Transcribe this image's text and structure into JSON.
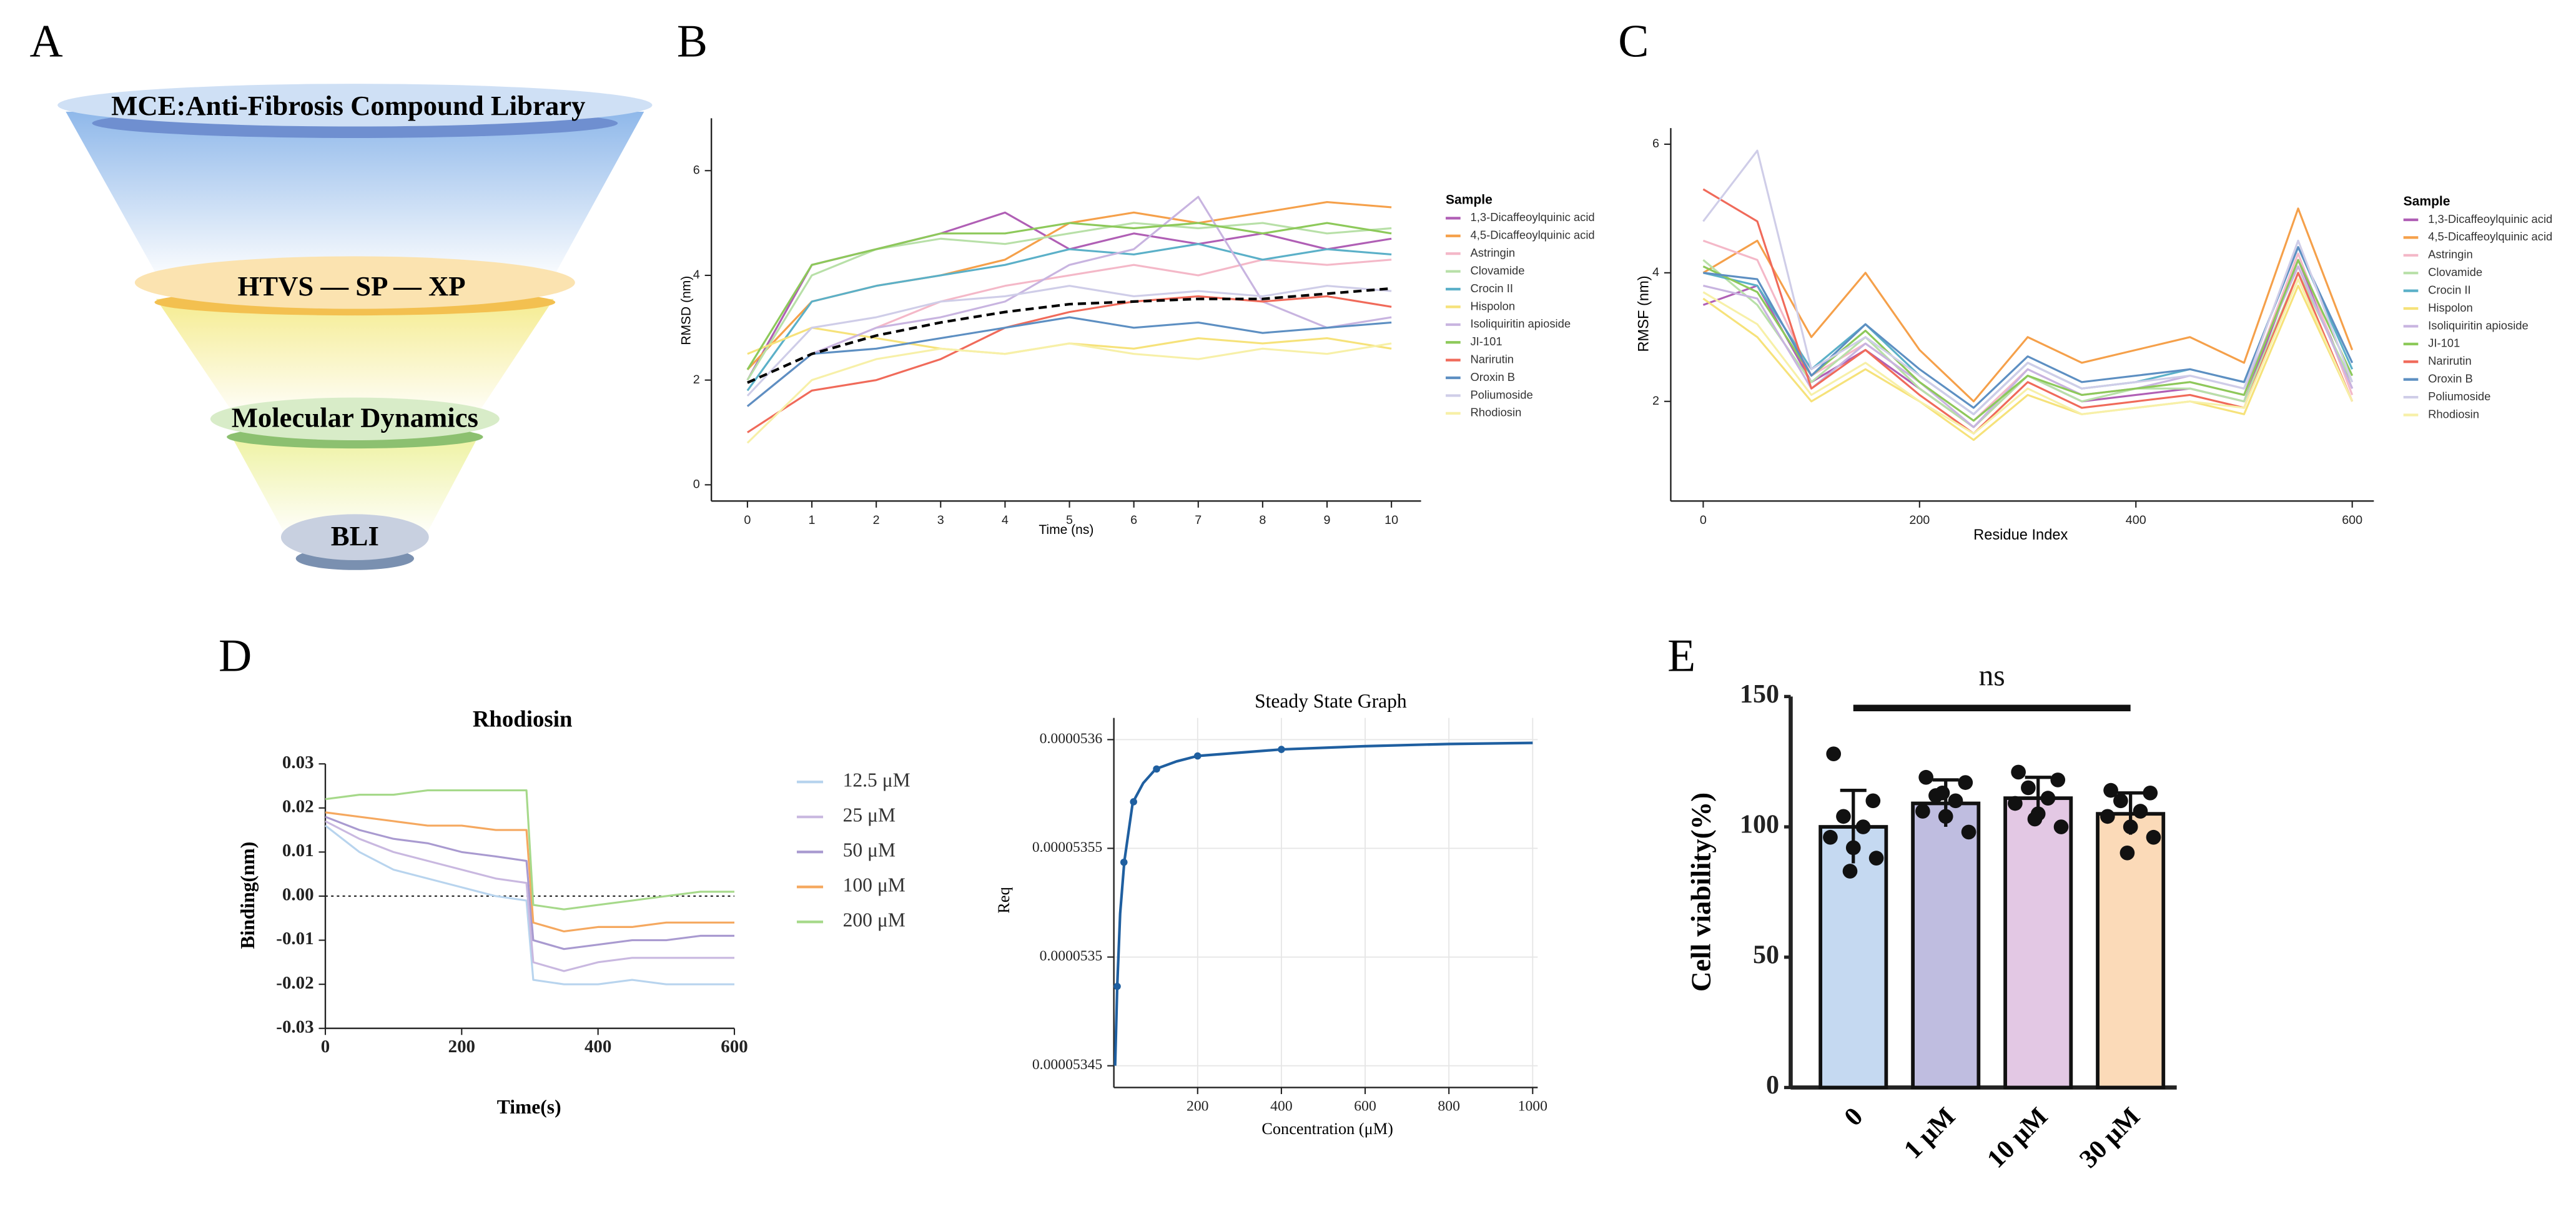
{
  "panel_labels": [
    "A",
    "B",
    "C",
    "D",
    "E"
  ],
  "funnel": {
    "levels": [
      "MCE:Anti-Fibrosis Compound Library",
      "HTVS — SP — XP",
      "Molecular Dynamics",
      "BLI"
    ]
  },
  "chart_data": [
    {
      "type": "line",
      "x_label": "Time (ns)",
      "y_label": "RMSD (nm)",
      "legend_title": "Sample",
      "x": [
        0,
        1,
        2,
        3,
        4,
        5,
        6,
        7,
        8,
        9,
        10
      ],
      "xlim": [
        -0.56,
        10.46
      ],
      "ylim": [
        -0.31,
        7.0
      ],
      "xticks": [
        0,
        1,
        2,
        3,
        4,
        5,
        6,
        7,
        8,
        9,
        10
      ],
      "yticks": [
        0,
        2,
        4,
        6
      ],
      "grid": false,
      "series": [
        {
          "name": "1,3-Dicaffeoylquinic acid",
          "color": "#b05fb5",
          "values": [
            2.0,
            4.2,
            4.5,
            4.8,
            5.2,
            4.5,
            4.8,
            4.6,
            4.8,
            4.5,
            4.7
          ]
        },
        {
          "name": "4,5-Dicaffeoylquinic acid",
          "color": "#f5a04a",
          "values": [
            2.2,
            3.5,
            3.8,
            4.0,
            4.3,
            5.0,
            5.2,
            5.0,
            5.2,
            5.4,
            5.3
          ]
        },
        {
          "name": "Astringin",
          "color": "#f4b8c8",
          "values": [
            1.5,
            2.5,
            3.0,
            3.5,
            3.8,
            4.0,
            4.2,
            4.0,
            4.3,
            4.2,
            4.3
          ]
        },
        {
          "name": "Clovamide",
          "color": "#b8e0a8",
          "values": [
            2.0,
            4.0,
            4.5,
            4.7,
            4.6,
            4.8,
            5.0,
            4.9,
            5.0,
            4.8,
            4.9
          ]
        },
        {
          "name": "Crocin II",
          "color": "#5bb0c8",
          "values": [
            1.8,
            3.5,
            3.8,
            4.0,
            4.2,
            4.5,
            4.4,
            4.6,
            4.3,
            4.5,
            4.4
          ]
        },
        {
          "name": "Hispolon",
          "color": "#f6e27a",
          "values": [
            2.5,
            3.0,
            2.8,
            2.6,
            2.5,
            2.7,
            2.6,
            2.8,
            2.7,
            2.8,
            2.6
          ]
        },
        {
          "name": "Isoliquiritin apioside",
          "color": "#c8b4e0",
          "values": [
            1.5,
            2.5,
            3.0,
            3.2,
            3.5,
            4.2,
            4.5,
            5.5,
            3.5,
            3.0,
            3.2
          ]
        },
        {
          "name": "JI-101",
          "color": "#8dc95a",
          "values": [
            2.2,
            4.2,
            4.5,
            4.8,
            4.8,
            5.0,
            4.9,
            5.0,
            4.8,
            5.0,
            4.8
          ]
        },
        {
          "name": "Narirutin",
          "color": "#f06a5a",
          "values": [
            1.0,
            1.8,
            2.0,
            2.4,
            3.0,
            3.3,
            3.5,
            3.6,
            3.5,
            3.6,
            3.4
          ]
        },
        {
          "name": "Oroxin B",
          "color": "#5d8fc2",
          "values": [
            1.5,
            2.5,
            2.6,
            2.8,
            3.0,
            3.2,
            3.0,
            3.1,
            2.9,
            3.0,
            3.1
          ]
        },
        {
          "name": "Poliumoside",
          "color": "#cfcde8",
          "values": [
            1.7,
            3.0,
            3.2,
            3.5,
            3.6,
            3.8,
            3.6,
            3.7,
            3.6,
            3.8,
            3.7
          ]
        },
        {
          "name": "Rhodiosin",
          "color": "#f7f0a8",
          "values": [
            0.8,
            2.0,
            2.4,
            2.6,
            2.5,
            2.7,
            2.5,
            2.4,
            2.6,
            2.5,
            2.7
          ]
        }
      ],
      "trend": {
        "color": "#000000",
        "values": [
          1.95,
          2.5,
          2.85,
          3.1,
          3.3,
          3.45,
          3.5,
          3.55,
          3.55,
          3.65,
          3.75
        ]
      }
    },
    {
      "type": "line",
      "x_label": "Residue Index",
      "y_label": "RMSF (nm)",
      "legend_title": "Sample",
      "x": [
        0,
        50,
        100,
        150,
        200,
        250,
        300,
        350,
        400,
        450,
        500,
        550,
        600
      ],
      "xlim": [
        -30,
        620
      ],
      "ylim": [
        0.45,
        6.25
      ],
      "xticks": [
        0,
        200,
        400,
        600
      ],
      "yticks": [
        2,
        4,
        6
      ],
      "grid": false,
      "series": [
        {
          "name": "1,3-Dicaffeoylquinic acid",
          "color": "#b05fb5",
          "values": [
            3.5,
            3.8,
            2.3,
            2.8,
            2.2,
            1.6,
            2.4,
            2.0,
            2.1,
            2.2,
            2.0,
            4.2,
            2.2
          ]
        },
        {
          "name": "4,5-Dicaffeoylquinic acid",
          "color": "#f5a04a",
          "values": [
            4.0,
            4.5,
            3.0,
            4.0,
            2.8,
            2.0,
            3.0,
            2.6,
            2.8,
            3.0,
            2.6,
            5.0,
            2.8
          ]
        },
        {
          "name": "Astringin",
          "color": "#f4b8c8",
          "values": [
            4.5,
            4.2,
            2.4,
            2.9,
            2.3,
            1.7,
            2.5,
            2.1,
            2.2,
            2.3,
            2.1,
            4.3,
            2.1
          ]
        },
        {
          "name": "Clovamide",
          "color": "#b8e0a8",
          "values": [
            4.2,
            3.5,
            2.3,
            3.0,
            2.2,
            1.6,
            2.4,
            2.0,
            2.2,
            2.2,
            2.0,
            4.0,
            2.3
          ]
        },
        {
          "name": "Crocin II",
          "color": "#5bb0c8",
          "values": [
            4.0,
            3.8,
            2.5,
            3.2,
            2.4,
            1.8,
            2.6,
            2.2,
            2.3,
            2.5,
            2.3,
            4.4,
            2.5
          ]
        },
        {
          "name": "Hispolon",
          "color": "#f6e27a",
          "values": [
            3.6,
            3.0,
            2.0,
            2.5,
            2.0,
            1.4,
            2.1,
            1.8,
            1.9,
            2.0,
            1.8,
            3.8,
            2.0
          ]
        },
        {
          "name": "Isoliquiritin apioside",
          "color": "#c8b4e0",
          "values": [
            3.8,
            3.6,
            2.2,
            2.9,
            2.3,
            1.6,
            2.5,
            2.1,
            2.2,
            2.4,
            2.2,
            4.1,
            2.2
          ]
        },
        {
          "name": "JI-101",
          "color": "#8dc95a",
          "values": [
            4.1,
            3.7,
            2.4,
            3.1,
            2.3,
            1.7,
            2.4,
            2.1,
            2.2,
            2.3,
            2.1,
            4.2,
            2.4
          ]
        },
        {
          "name": "Narirutin",
          "color": "#f06a5a",
          "values": [
            5.3,
            4.8,
            2.2,
            2.8,
            2.1,
            1.5,
            2.3,
            1.9,
            2.0,
            2.1,
            1.9,
            4.0,
            2.0
          ]
        },
        {
          "name": "Oroxin B",
          "color": "#5d8fc2",
          "values": [
            4.0,
            3.9,
            2.4,
            3.2,
            2.5,
            1.9,
            2.7,
            2.3,
            2.4,
            2.5,
            2.3,
            4.4,
            2.6
          ]
        },
        {
          "name": "Poliumoside",
          "color": "#cfcde8",
          "values": [
            4.8,
            5.9,
            2.5,
            3.0,
            2.4,
            1.8,
            2.6,
            2.2,
            2.3,
            2.4,
            2.2,
            4.5,
            2.3
          ]
        },
        {
          "name": "Rhodiosin",
          "color": "#f7f0a8",
          "values": [
            3.7,
            3.2,
            2.1,
            2.6,
            2.0,
            1.5,
            2.2,
            1.8,
            1.9,
            2.0,
            1.9,
            3.9,
            2.0
          ]
        }
      ]
    },
    {
      "type": "line",
      "title": "Rhodiosin",
      "x_label": "Time(s)",
      "y_label": "Binding(nm)",
      "x": [
        0,
        50,
        100,
        150,
        200,
        250,
        295,
        305,
        350,
        400,
        450,
        500,
        550,
        600
      ],
      "xlim": [
        0,
        600
      ],
      "ylim": [
        -0.03,
        0.03
      ],
      "xticks": [
        0,
        200,
        400,
        600
      ],
      "yticks": [
        0.03,
        0.02,
        0.01,
        {
          "value": 0,
          "label": "0.00"
        },
        -0.01,
        -0.02,
        -0.03
      ],
      "grid": false,
      "zero_line": true,
      "series": [
        {
          "name": "12.5 μM",
          "color": "#b8d4ee",
          "values": [
            0.016,
            0.01,
            0.006,
            0.004,
            0.002,
            0.0,
            -0.001,
            -0.019,
            -0.02,
            -0.02,
            -0.019,
            -0.02,
            -0.02,
            -0.02
          ]
        },
        {
          "name": "25 μM",
          "color": "#c9b8e0",
          "values": [
            0.017,
            0.013,
            0.01,
            0.008,
            0.006,
            0.004,
            0.003,
            -0.015,
            -0.017,
            -0.015,
            -0.014,
            -0.014,
            -0.014,
            -0.014
          ]
        },
        {
          "name": "50 μM",
          "color": "#a99ad0",
          "values": [
            0.018,
            0.015,
            0.013,
            0.012,
            0.01,
            0.009,
            0.008,
            -0.01,
            -0.012,
            -0.011,
            -0.01,
            -0.01,
            -0.009,
            -0.009
          ]
        },
        {
          "name": "100 μM",
          "color": "#f5a85f",
          "values": [
            0.019,
            0.018,
            0.017,
            0.016,
            0.016,
            0.015,
            0.015,
            -0.006,
            -0.008,
            -0.007,
            -0.007,
            -0.006,
            -0.006,
            -0.006
          ]
        },
        {
          "name": "200 μM",
          "color": "#a6d98a",
          "values": [
            0.022,
            0.023,
            0.023,
            0.024,
            0.024,
            0.024,
            0.024,
            -0.002,
            -0.003,
            -0.002,
            -0.001,
            0.0,
            0.001,
            0.001
          ]
        }
      ]
    },
    {
      "type": "scatter",
      "title": "Steady State Graph",
      "x_label": "Concentration (μM)",
      "y_label": "Req",
      "color": "#1f5fa0",
      "xlim": [
        0,
        1012
      ],
      "ylim": [
        5.344e-05,
        5.361e-05
      ],
      "xticks": [
        200,
        400,
        600,
        800,
        1000
      ],
      "yticks": [
        5.36e-05,
        5.355e-05,
        5.35e-05,
        5.345e-05
      ],
      "grid": true,
      "points": {
        "x": [
          8,
          24,
          47,
          102,
          200,
          400
        ],
        "values": [
          5.34865e-05,
          5.35436e-05,
          5.35714e-05,
          5.35865e-05,
          5.35925e-05,
          5.35955e-05
        ]
      },
      "fit": {
        "x": [
          3,
          8,
          15,
          25,
          45,
          70,
          100,
          150,
          200,
          300,
          400,
          600,
          800,
          1000
        ],
        "values": [
          5.345e-05,
          5.34865e-05,
          5.352e-05,
          5.3544e-05,
          5.3571e-05,
          5.358e-05,
          5.35865e-05,
          5.359e-05,
          5.35925e-05,
          5.3594e-05,
          5.35955e-05,
          5.3597e-05,
          5.3598e-05,
          5.35985e-05
        ]
      }
    },
    {
      "type": "bar",
      "y_label": "Cell viability(%)",
      "annotation": "ns",
      "categories": [
        "0",
        "1 μM",
        "10 μM",
        "30 μM"
      ],
      "values": [
        100,
        109,
        111,
        105
      ],
      "errors": [
        14,
        9,
        8,
        8
      ],
      "colors": [
        "#c5d9f1",
        "#bfbde0",
        "#e3c8e4",
        "#fbdab8"
      ],
      "points": [
        [
          128,
          110,
          104,
          100,
          96,
          92,
          88,
          83
        ],
        [
          119,
          117,
          112,
          110,
          106,
          104,
          98,
          113
        ],
        [
          121,
          118,
          115,
          111,
          109,
          105,
          100,
          103
        ],
        [
          114,
          113,
          110,
          106,
          104,
          100,
          96,
          90
        ]
      ],
      "ylim": [
        0,
        150
      ],
      "yticks": [
        0,
        50,
        100,
        150
      ],
      "grid": false
    }
  ]
}
